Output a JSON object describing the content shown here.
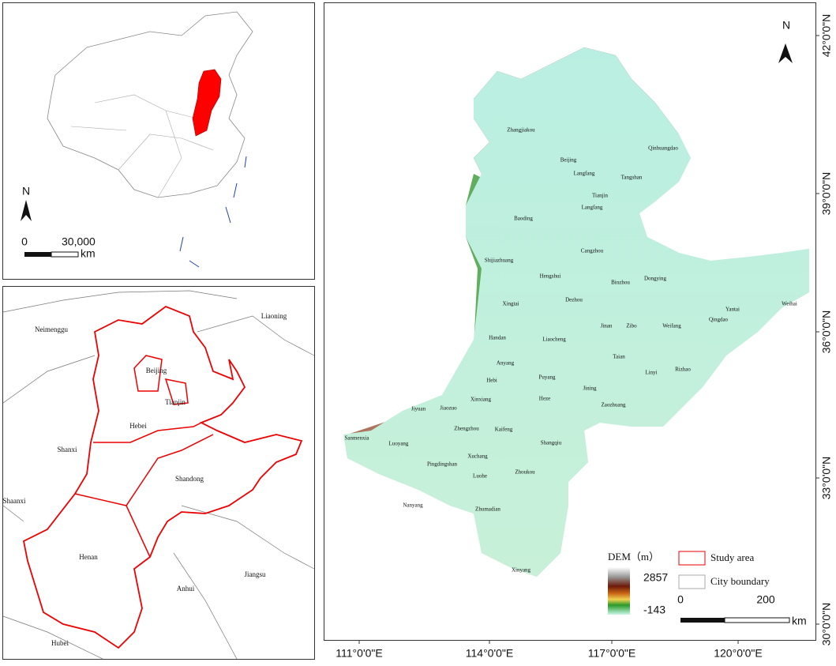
{
  "inset_china": {
    "north": "N",
    "scale": {
      "start": "0",
      "end": "30,000",
      "unit": "km"
    }
  },
  "inset_provinces": {
    "labels": [
      "Neimenggu",
      "Liaoning",
      "Beijing",
      "Tianjin",
      "Hebei",
      "Shanxi",
      "Shandong",
      "Shaanxi",
      "Henan",
      "Jiangsu",
      "Anhui",
      "Hubei"
    ]
  },
  "main_map": {
    "north": "N",
    "cities": [
      "Zhangjiakou",
      "Qinhuangdao",
      "Beijing",
      "Langfang",
      "Tangshan",
      "Tianjin",
      "Langfang",
      "Baoding",
      "Cangzhou",
      "Shijiazhuang",
      "Hengshui",
      "Binzhou",
      "Dongying",
      "Weihai",
      "Yantai",
      "Xingtai",
      "Dezhou",
      "Zibo",
      "Jinan",
      "Weifang",
      "Qingdao",
      "Handan",
      "Liaocheng",
      "Taian",
      "Rizhao",
      "Anyang",
      "Puyang",
      "Hebi",
      "Linyi",
      "Jining",
      "Xinxiang",
      "Heze",
      "Zaozhuang",
      "Jiaozuo",
      "Jiyuan",
      "Zhengzhou",
      "Kaifeng",
      "Shangqiu",
      "Luoyang",
      "Xuchang",
      "Pingdingshan",
      "Luohe",
      "Zhoukou",
      "Sanmenxia",
      "Nanyang",
      "Zhumadian",
      "Xinyang"
    ],
    "longitude_labels": [
      "111°0'0\"E",
      "114°0'0\"E",
      "117°0'0\"E",
      "120°0'0\"E"
    ],
    "latitude_labels": [
      "42°0'0\"N",
      "39°0'0\"N",
      "36°0'0\"N",
      "33°0'0\"N",
      "30°0'0\"N"
    ],
    "legend": {
      "dem_title": "DEM（m）",
      "dem_max": "2857",
      "dem_min": "-143",
      "study_area": "Study area",
      "city_boundary": "City boundary"
    },
    "scale": {
      "start": "0",
      "end": "200",
      "unit": "km"
    }
  }
}
